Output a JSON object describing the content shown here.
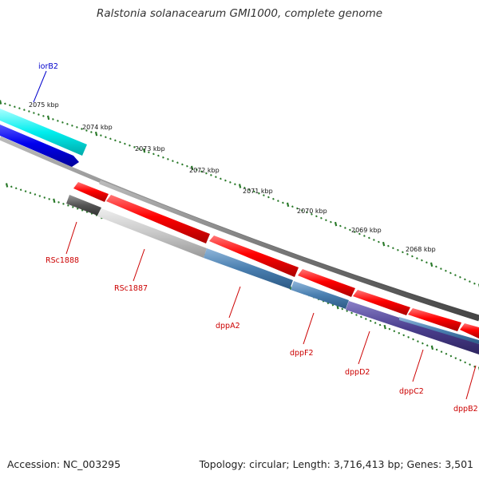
{
  "title": "Ralstonia solanacearum GMI1000, complete genome",
  "footer": {
    "accession": "Accession: NC_003295",
    "summary": "Topology: circular; Length: 3,716,413 bp; Genes: 3,501"
  },
  "ruler": {
    "labels": [
      "2075 kbp",
      "2074 kbp",
      "2073 kbp",
      "2072 kbp",
      "2071 kbp",
      "2070 kbp",
      "2069 kbp",
      "2068 kbp"
    ]
  },
  "genes": [
    {
      "name": "iorB2",
      "color": "#0000cc",
      "strand": "forward"
    },
    {
      "name": "RSc1888",
      "color": "#cc0000",
      "strand": "reverse"
    },
    {
      "name": "RSc1887",
      "color": "#cc0000",
      "strand": "reverse"
    },
    {
      "name": "dppA2",
      "color": "#cc0000",
      "strand": "reverse"
    },
    {
      "name": "dppF2",
      "color": "#cc0000",
      "strand": "reverse"
    },
    {
      "name": "dppD2",
      "color": "#cc0000",
      "strand": "reverse"
    },
    {
      "name": "dppC2",
      "color": "#cc0000",
      "strand": "reverse"
    },
    {
      "name": "dppB2",
      "color": "#cc0000",
      "strand": "reverse"
    }
  ],
  "colors": {
    "cds_forward": "#0000ee",
    "cds_reverse": "#ff0000",
    "cog_cyan": "#00eeee",
    "cog_steelblue": "#4a7fb0",
    "cog_purple": "#4b3f8f",
    "cog_gray": "#c8c8c8",
    "cog_darkgray": "#555555",
    "backbone": "#777777",
    "ticks": "#2a7a2a"
  }
}
